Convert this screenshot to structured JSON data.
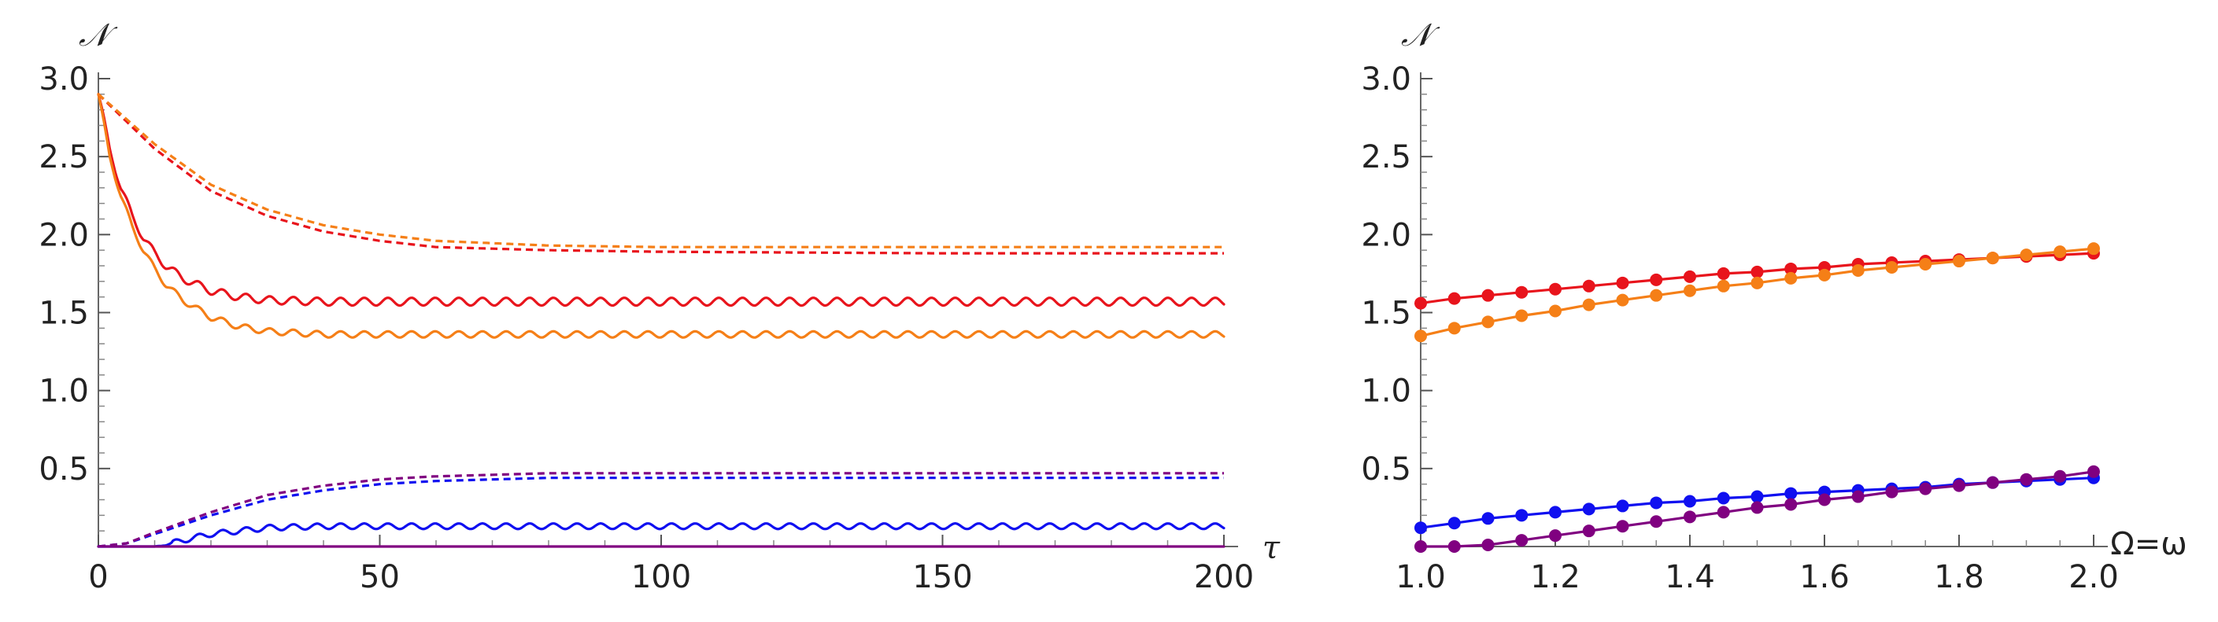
{
  "chart_data": [
    {
      "type": "line",
      "xlabel": "τ",
      "ylabel": "𝒩",
      "xlim": [
        0,
        200
      ],
      "ylim": [
        0,
        3.0
      ],
      "x_ticks": [
        "0",
        "50",
        "100",
        "150",
        "200"
      ],
      "y_ticks": [
        "0.5",
        "1.0",
        "1.5",
        "2.0",
        "2.5",
        "3.0"
      ],
      "grid": false,
      "series": [
        {
          "color": "#e8141c",
          "style": "solid",
          "x": [
            0,
            2,
            4,
            6,
            8,
            10,
            12,
            15,
            20,
            25,
            30,
            40,
            60,
            80,
            100,
            150,
            200
          ],
          "y": [
            2.9,
            2.55,
            2.3,
            2.12,
            1.98,
            1.88,
            1.8,
            1.72,
            1.64,
            1.6,
            1.58,
            1.57,
            1.57,
            1.57,
            1.57,
            1.57,
            1.57
          ],
          "osc_amp": 0.025
        },
        {
          "color": "#f57f17",
          "style": "solid",
          "x": [
            0,
            2,
            4,
            6,
            8,
            10,
            12,
            15,
            20,
            25,
            30,
            40,
            60,
            80,
            100,
            150,
            200
          ],
          "y": [
            2.9,
            2.5,
            2.25,
            2.05,
            1.9,
            1.78,
            1.68,
            1.58,
            1.47,
            1.41,
            1.38,
            1.36,
            1.36,
            1.36,
            1.36,
            1.36,
            1.36
          ],
          "osc_amp": 0.02
        },
        {
          "color": "#e8141c",
          "style": "dashed",
          "x": [
            0,
            10,
            20,
            30,
            40,
            50,
            60,
            80,
            100,
            150,
            200
          ],
          "y": [
            2.9,
            2.55,
            2.28,
            2.12,
            2.02,
            1.96,
            1.92,
            1.9,
            1.89,
            1.88,
            1.88
          ]
        },
        {
          "color": "#f57f17",
          "style": "dashed",
          "x": [
            0,
            10,
            20,
            30,
            40,
            50,
            60,
            80,
            100,
            150,
            200
          ],
          "y": [
            2.9,
            2.58,
            2.32,
            2.16,
            2.06,
            2.0,
            1.96,
            1.93,
            1.92,
            1.92,
            1.92
          ]
        },
        {
          "color": "#1010f0",
          "style": "solid",
          "x": [
            0,
            10,
            12,
            15,
            20,
            30,
            40,
            60,
            100,
            150,
            200
          ],
          "y": [
            0,
            0,
            0.01,
            0.04,
            0.08,
            0.12,
            0.13,
            0.13,
            0.13,
            0.13,
            0.13
          ],
          "osc_amp": 0.018
        },
        {
          "color": "#800080",
          "style": "solid",
          "x": [
            0,
            200
          ],
          "y": [
            0.0,
            0.0
          ]
        },
        {
          "color": "#1010f0",
          "style": "dashed",
          "x": [
            0,
            5,
            10,
            20,
            30,
            40,
            50,
            60,
            80,
            100,
            150,
            200
          ],
          "y": [
            0,
            0.02,
            0.08,
            0.2,
            0.3,
            0.36,
            0.4,
            0.42,
            0.44,
            0.44,
            0.44,
            0.44
          ]
        },
        {
          "color": "#800080",
          "style": "dashed",
          "x": [
            0,
            5,
            10,
            20,
            30,
            40,
            50,
            60,
            80,
            100,
            150,
            200
          ],
          "y": [
            0,
            0.02,
            0.09,
            0.22,
            0.33,
            0.39,
            0.43,
            0.45,
            0.47,
            0.47,
            0.47,
            0.47
          ]
        }
      ]
    },
    {
      "type": "line",
      "xlabel": "Ω=ω",
      "ylabel": "𝒩",
      "xlim": [
        1.0,
        2.0
      ],
      "ylim": [
        0,
        3.0
      ],
      "x_ticks": [
        "1.0",
        "1.2",
        "1.4",
        "1.6",
        "1.8",
        "2.0"
      ],
      "y_ticks": [
        "0.5",
        "1.0",
        "1.5",
        "2.0",
        "2.5",
        "3.0"
      ],
      "grid": false,
      "markers": true,
      "series": [
        {
          "color": "#e8141c",
          "x": [
            1.0,
            1.05,
            1.1,
            1.15,
            1.2,
            1.25,
            1.3,
            1.35,
            1.4,
            1.45,
            1.5,
            1.55,
            1.6,
            1.65,
            1.7,
            1.75,
            1.8,
            1.85,
            1.9,
            1.95,
            2.0
          ],
          "y": [
            1.56,
            1.59,
            1.61,
            1.63,
            1.65,
            1.67,
            1.69,
            1.71,
            1.73,
            1.75,
            1.76,
            1.78,
            1.79,
            1.81,
            1.82,
            1.83,
            1.84,
            1.85,
            1.86,
            1.87,
            1.88
          ]
        },
        {
          "color": "#f57f17",
          "x": [
            1.0,
            1.05,
            1.1,
            1.15,
            1.2,
            1.25,
            1.3,
            1.35,
            1.4,
            1.45,
            1.5,
            1.55,
            1.6,
            1.65,
            1.7,
            1.75,
            1.8,
            1.85,
            1.9,
            1.95,
            2.0
          ],
          "y": [
            1.35,
            1.4,
            1.44,
            1.48,
            1.51,
            1.55,
            1.58,
            1.61,
            1.64,
            1.67,
            1.69,
            1.72,
            1.74,
            1.77,
            1.79,
            1.81,
            1.83,
            1.85,
            1.87,
            1.89,
            1.91
          ]
        },
        {
          "color": "#1010f0",
          "x": [
            1.0,
            1.05,
            1.1,
            1.15,
            1.2,
            1.25,
            1.3,
            1.35,
            1.4,
            1.45,
            1.5,
            1.55,
            1.6,
            1.65,
            1.7,
            1.75,
            1.8,
            1.85,
            1.9,
            1.95,
            2.0
          ],
          "y": [
            0.12,
            0.15,
            0.18,
            0.2,
            0.22,
            0.24,
            0.26,
            0.28,
            0.29,
            0.31,
            0.32,
            0.34,
            0.35,
            0.36,
            0.37,
            0.38,
            0.4,
            0.41,
            0.42,
            0.43,
            0.44
          ]
        },
        {
          "color": "#800080",
          "x": [
            1.0,
            1.05,
            1.1,
            1.15,
            1.2,
            1.25,
            1.3,
            1.35,
            1.4,
            1.45,
            1.5,
            1.55,
            1.6,
            1.65,
            1.7,
            1.75,
            1.8,
            1.85,
            1.9,
            1.95,
            2.0
          ],
          "y": [
            0.0,
            0.0,
            0.01,
            0.04,
            0.07,
            0.1,
            0.13,
            0.16,
            0.19,
            0.22,
            0.25,
            0.27,
            0.3,
            0.32,
            0.35,
            0.37,
            0.39,
            0.41,
            0.43,
            0.45,
            0.48
          ]
        }
      ]
    }
  ]
}
